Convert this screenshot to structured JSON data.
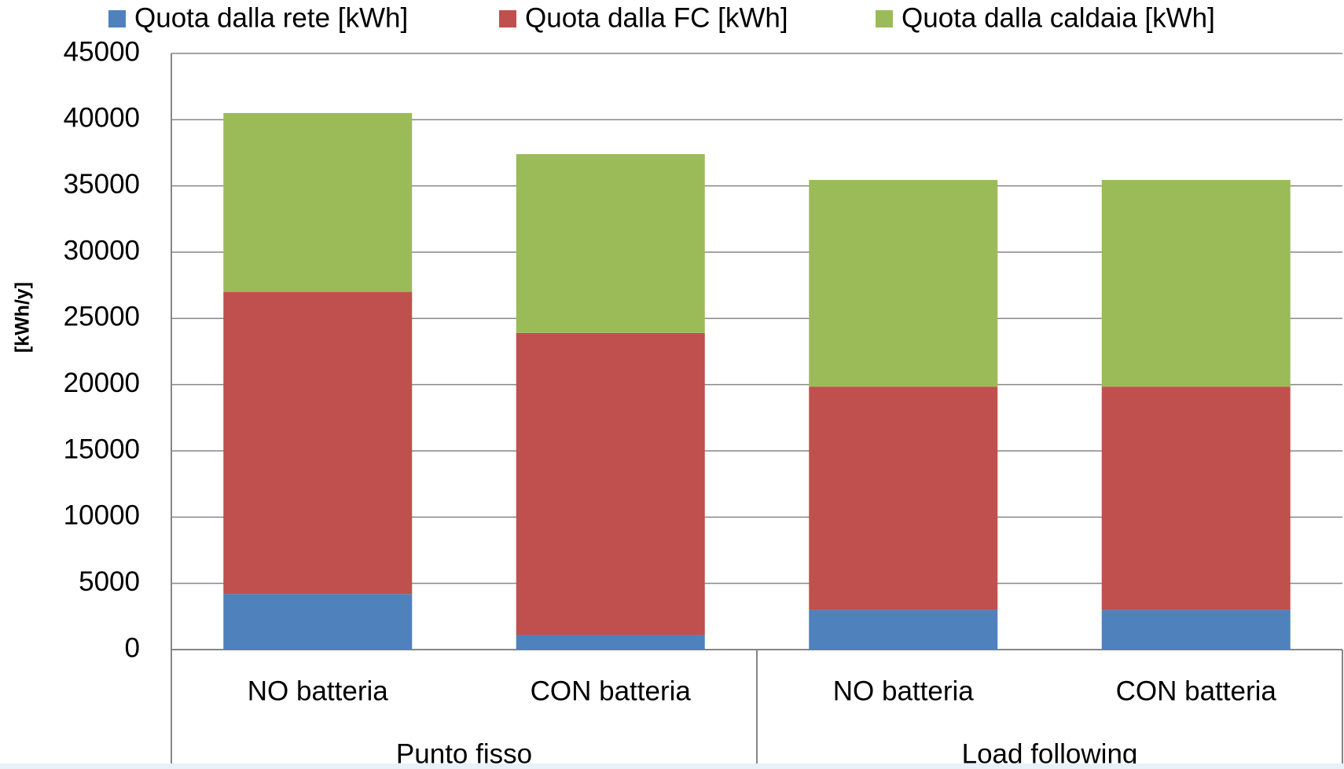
{
  "chart_data": {
    "type": "stacked_bar",
    "y_label": "[kWh/y]",
    "categories": [
      "NO batteria",
      "CON batteria",
      "NO batteria",
      "CON batteria"
    ],
    "groups": [
      "Punto fisso",
      "Load following"
    ],
    "series": [
      {
        "name": "Quota dalla rete [kWh]",
        "color": "#4f81bd",
        "values": [
          4200,
          1100,
          3000,
          3000
        ]
      },
      {
        "name": "Quota dalla  FC [kWh]",
        "color": "#c0504d",
        "values": [
          22800,
          22800,
          16850,
          16850
        ]
      },
      {
        "name": "Quota dalla caldaia [kWh]",
        "color": "#9bbb59",
        "values": [
          13500,
          13500,
          15600,
          15600
        ]
      }
    ],
    "ylim": [
      0,
      45000
    ],
    "yticks": [
      0,
      5000,
      10000,
      15000,
      20000,
      25000,
      30000,
      35000,
      40000,
      45000
    ],
    "grid": true,
    "legend": "top"
  }
}
